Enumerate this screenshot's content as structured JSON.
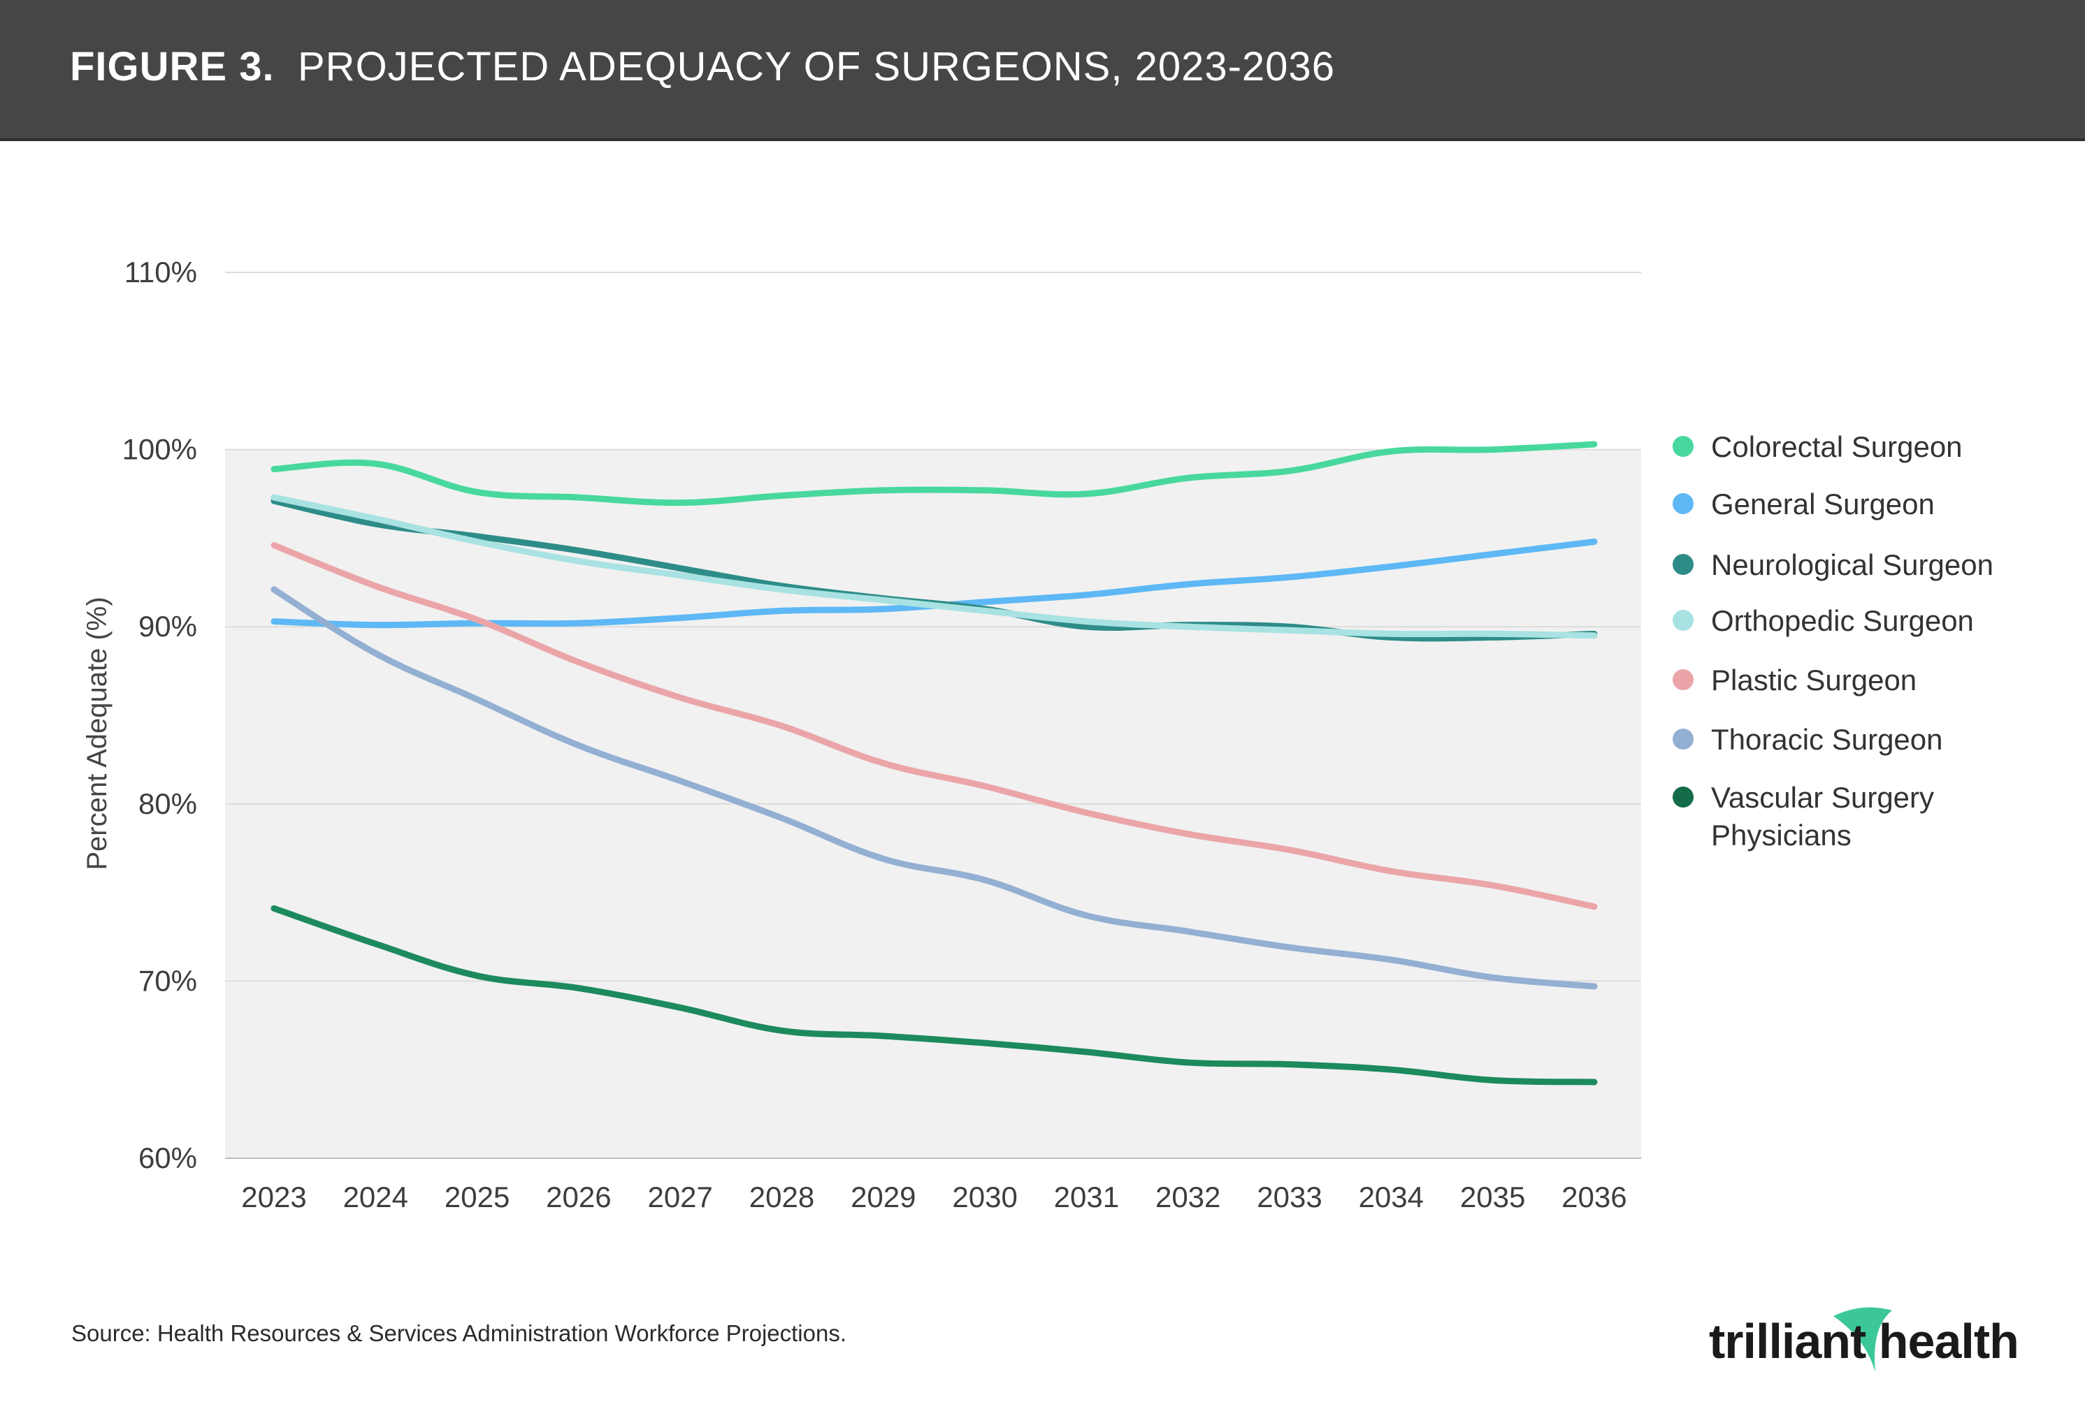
{
  "header": {
    "figure_label": "FIGURE 3.",
    "title": "PROJECTED ADEQUACY OF SURGEONS, 2023-2036"
  },
  "source": "Source: Health Resources & Services Administration Workforce Projections.",
  "logo": {
    "text": "trilliant health",
    "swoosh_color": "#3cc79a"
  },
  "chart_data": {
    "type": "line",
    "title": "PROJECTED ADEQUACY OF SURGEONS, 2023-2036",
    "ylabel": "Percent Adequate (%)",
    "xlabel": "",
    "x": [
      "2023",
      "2024",
      "2025",
      "2026",
      "2027",
      "2028",
      "2029",
      "2030",
      "2031",
      "2032",
      "2033",
      "2034",
      "2035",
      "2036"
    ],
    "ylim": [
      60,
      110
    ],
    "yticks": [
      "60%",
      "70%",
      "80%",
      "90%",
      "100%",
      "110%"
    ],
    "ytick_values": [
      60,
      70,
      80,
      90,
      100,
      110
    ],
    "shaded_band": [
      60,
      100
    ],
    "grid": true,
    "legend_position": "right",
    "series": [
      {
        "name": "Colorectal Surgeon",
        "color": "#48d89e",
        "values": [
          98.9,
          99.2,
          97.6,
          97.3,
          97.0,
          97.4,
          97.7,
          97.7,
          97.5,
          98.4,
          98.8,
          99.9,
          100.0,
          100.3
        ]
      },
      {
        "name": "General Surgeon",
        "color": "#5db8f5",
        "values": [
          90.3,
          90.1,
          90.2,
          90.2,
          90.5,
          90.9,
          91.0,
          91.4,
          91.8,
          92.4,
          92.8,
          93.4,
          94.1,
          94.8
        ]
      },
      {
        "name": "Neurological Surgeon",
        "color": "#2e8c88",
        "values": [
          97.1,
          95.8,
          95.1,
          94.3,
          93.3,
          92.3,
          91.6,
          91.0,
          90.0,
          90.1,
          90.0,
          89.4,
          89.4,
          89.6
        ]
      },
      {
        "name": "Orthopedic Surgeon",
        "color": "#a9e2e2",
        "values": [
          97.3,
          96.1,
          94.8,
          93.7,
          92.9,
          92.1,
          91.5,
          90.9,
          90.3,
          90.0,
          89.8,
          89.6,
          89.6,
          89.5
        ]
      },
      {
        "name": "Plastic Surgeon",
        "color": "#eba5a8",
        "values": [
          94.6,
          92.3,
          90.4,
          88.0,
          86.0,
          84.4,
          82.3,
          81.0,
          79.5,
          78.3,
          77.4,
          76.2,
          75.4,
          74.2
        ]
      },
      {
        "name": "Thoracic Surgeon",
        "color": "#93afd2",
        "values": [
          92.1,
          88.5,
          85.9,
          83.3,
          81.3,
          79.2,
          76.9,
          75.7,
          73.7,
          72.8,
          71.9,
          71.2,
          70.2,
          69.7
        ]
      },
      {
        "name": "Vascular Surgery Physicians",
        "legend_lines": [
          "Vascular Surgery",
          "Physicians"
        ],
        "color": "#1c8a5e",
        "legend_marker_color": "#136b48",
        "values": [
          74.1,
          72.1,
          70.3,
          69.6,
          68.5,
          67.2,
          66.9,
          66.5,
          66.0,
          65.4,
          65.3,
          65.0,
          64.4,
          64.3
        ]
      }
    ]
  }
}
